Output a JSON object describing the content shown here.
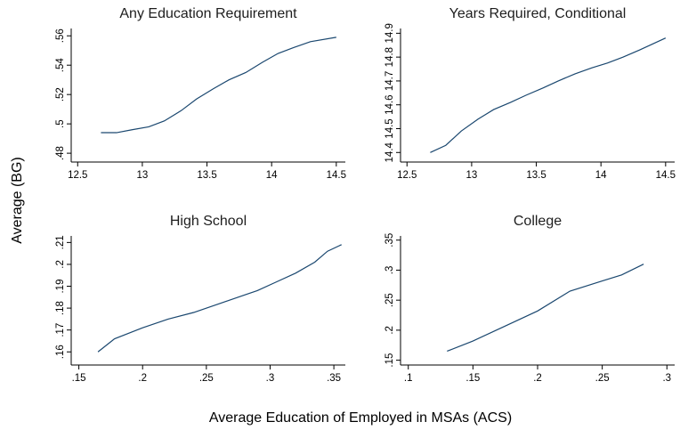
{
  "ylabel": "Average (BG)",
  "xlabel": "Average Education of Employed in MSAs (ACS)",
  "chart_data": [
    {
      "type": "line",
      "title": "Any Education Requirement",
      "color": "#1a476f",
      "x": [
        12.68,
        12.8,
        12.92,
        13.05,
        13.17,
        13.3,
        13.42,
        13.55,
        13.67,
        13.8,
        13.93,
        14.05,
        14.17,
        14.3,
        14.5
      ],
      "values": [
        0.494,
        0.494,
        0.496,
        0.498,
        0.502,
        0.509,
        0.517,
        0.524,
        0.53,
        0.535,
        0.542,
        0.548,
        0.552,
        0.556,
        0.559
      ],
      "xlim": [
        12.45,
        14.57
      ],
      "ylim": [
        0.474,
        0.565
      ],
      "xticks": [
        12.5,
        13,
        13.5,
        14,
        14.5
      ],
      "yticks": [
        {
          "value": 0.48,
          "label": ".48"
        },
        {
          "value": 0.5,
          "label": ".5"
        },
        {
          "value": 0.52,
          "label": ".52"
        },
        {
          "value": 0.54,
          "label": ".54"
        },
        {
          "value": 0.56,
          "label": ".56"
        }
      ]
    },
    {
      "type": "line",
      "title": "Years Required, Conditional",
      "color": "#1a476f",
      "x": [
        12.68,
        12.8,
        12.92,
        13.05,
        13.17,
        13.3,
        13.42,
        13.55,
        13.67,
        13.8,
        13.93,
        14.05,
        14.17,
        14.3,
        14.5
      ],
      "values": [
        14.4,
        14.43,
        14.49,
        14.54,
        14.58,
        14.61,
        14.64,
        14.67,
        14.7,
        14.73,
        14.755,
        14.775,
        14.8,
        14.83,
        14.88
      ],
      "xlim": [
        12.45,
        14.57
      ],
      "ylim": [
        14.36,
        14.92
      ],
      "xticks": [
        12.5,
        13,
        13.5,
        14,
        14.5
      ],
      "yticks": [
        14.4,
        14.5,
        14.6,
        14.7,
        14.8,
        14.9
      ]
    },
    {
      "type": "line",
      "title": "High School",
      "color": "#1a476f",
      "x": [
        0.165,
        0.178,
        0.2,
        0.22,
        0.24,
        0.26,
        0.28,
        0.29,
        0.305,
        0.32,
        0.335,
        0.345,
        0.356
      ],
      "values": [
        0.16,
        0.166,
        0.171,
        0.175,
        0.178,
        0.182,
        0.186,
        0.188,
        0.192,
        0.196,
        0.201,
        0.206,
        0.209
      ],
      "xlim": [
        0.144,
        0.359
      ],
      "ylim": [
        0.154,
        0.213
      ],
      "xticks": [
        {
          "value": 0.15,
          "label": ".15"
        },
        {
          "value": 0.2,
          "label": ".2"
        },
        {
          "value": 0.25,
          "label": ".25"
        },
        {
          "value": 0.3,
          "label": ".3"
        },
        {
          "value": 0.35,
          "label": ".35"
        }
      ],
      "yticks": [
        {
          "value": 0.16,
          "label": ".16"
        },
        {
          "value": 0.17,
          "label": ".17"
        },
        {
          "value": 0.18,
          "label": ".18"
        },
        {
          "value": 0.19,
          "label": ".19"
        },
        {
          "value": 0.2,
          "label": ".2"
        },
        {
          "value": 0.21,
          "label": ".21"
        }
      ]
    },
    {
      "type": "line",
      "title": "College",
      "color": "#1a476f",
      "x": [
        0.13,
        0.15,
        0.175,
        0.2,
        0.225,
        0.25,
        0.265,
        0.282
      ],
      "values": [
        0.165,
        0.182,
        0.207,
        0.232,
        0.265,
        0.282,
        0.292,
        0.31
      ],
      "xlim": [
        0.094,
        0.306
      ],
      "ylim": [
        0.142,
        0.357
      ],
      "xticks": [
        {
          "value": 0.1,
          "label": ".1"
        },
        {
          "value": 0.15,
          "label": ".15"
        },
        {
          "value": 0.2,
          "label": ".2"
        },
        {
          "value": 0.25,
          "label": ".25"
        },
        {
          "value": 0.3,
          "label": ".3"
        }
      ],
      "yticks": [
        {
          "value": 0.15,
          "label": ".15"
        },
        {
          "value": 0.2,
          "label": ".2"
        },
        {
          "value": 0.25,
          "label": ".25"
        },
        {
          "value": 0.3,
          "label": ".3"
        },
        {
          "value": 0.35,
          "label": ".35"
        }
      ]
    }
  ]
}
